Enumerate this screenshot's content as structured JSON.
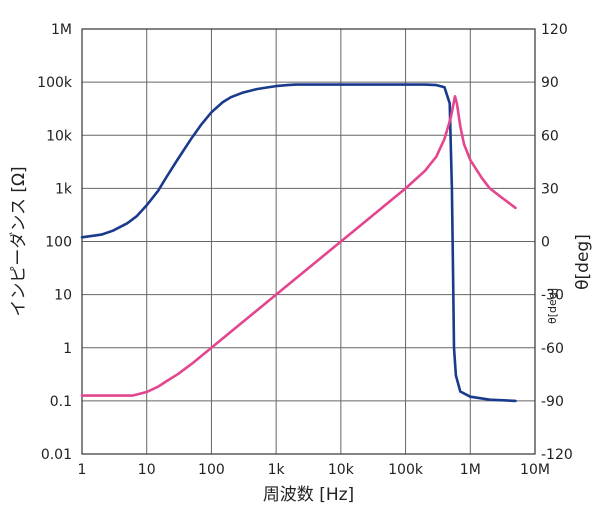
{
  "chart_data": {
    "type": "line",
    "xlabel": "周波数 [Hz]",
    "ylabel": "インピーダンス [Ω]",
    "y2label": "θ[deg]",
    "y2label_inner": "θ[deg]",
    "x_scale": "log",
    "y_scale": "log",
    "xlim": [
      1,
      10000000
    ],
    "ylim": [
      0.01,
      1000000
    ],
    "y2lim": [
      -120,
      120
    ],
    "grid": true,
    "x_ticks": [
      {
        "value": 1,
        "label": "1"
      },
      {
        "value": 10,
        "label": "10"
      },
      {
        "value": 100,
        "label": "100"
      },
      {
        "value": 1000,
        "label": "1k"
      },
      {
        "value": 10000,
        "label": "10k"
      },
      {
        "value": 100000,
        "label": "100k"
      },
      {
        "value": 1000000,
        "label": "1M"
      },
      {
        "value": 10000000,
        "label": "10M"
      }
    ],
    "y_ticks": [
      {
        "value": 0.01,
        "label": "0.01"
      },
      {
        "value": 0.1,
        "label": "0.1"
      },
      {
        "value": 1,
        "label": "1"
      },
      {
        "value": 10,
        "label": "10"
      },
      {
        "value": 100,
        "label": "100"
      },
      {
        "value": 1000,
        "label": "1k"
      },
      {
        "value": 10000,
        "label": "10k"
      },
      {
        "value": 100000,
        "label": "100k"
      },
      {
        "value": 1000000,
        "label": "1M"
      }
    ],
    "y2_ticks": [
      {
        "value": 120,
        "label": "120"
      },
      {
        "value": 90,
        "label": "90"
      },
      {
        "value": 60,
        "label": "60"
      },
      {
        "value": 30,
        "label": "30"
      },
      {
        "value": 0,
        "label": "0"
      },
      {
        "value": -30,
        "label": "-30"
      },
      {
        "value": -60,
        "label": "-60"
      },
      {
        "value": -90,
        "label": "-90"
      },
      {
        "value": -120,
        "label": "-120"
      }
    ],
    "series": [
      {
        "axis": "left",
        "color": "#1a3a8c",
        "points": [
          [
            1,
            120
          ],
          [
            2,
            135
          ],
          [
            3,
            160
          ],
          [
            5,
            220
          ],
          [
            7,
            300
          ],
          [
            10,
            480
          ],
          [
            15,
            900
          ],
          [
            20,
            1600
          ],
          [
            30,
            3500
          ],
          [
            50,
            9000
          ],
          [
            70,
            16000
          ],
          [
            100,
            27000
          ],
          [
            150,
            42000
          ],
          [
            200,
            52000
          ],
          [
            300,
            63000
          ],
          [
            500,
            74000
          ],
          [
            700,
            79000
          ],
          [
            1000,
            84000
          ],
          [
            1500,
            88000
          ],
          [
            2000,
            90000
          ],
          [
            5000,
            90000
          ],
          [
            10000,
            90000
          ],
          [
            50000,
            90000
          ],
          [
            100000,
            90000
          ],
          [
            200000,
            90000
          ],
          [
            300000,
            88000
          ],
          [
            400000,
            80000
          ],
          [
            480000,
            40000
          ],
          [
            520000,
            1000
          ],
          [
            540000,
            30
          ],
          [
            560000,
            1
          ],
          [
            600000,
            0.3
          ],
          [
            700000,
            0.15
          ],
          [
            1000000,
            0.12
          ],
          [
            2000000,
            0.105
          ],
          [
            5000000,
            0.1
          ]
        ]
      },
      {
        "axis": "right",
        "color": "#e4458f",
        "points": [
          [
            1,
            -87
          ],
          [
            3,
            -87
          ],
          [
            6,
            -87
          ],
          [
            10,
            -85
          ],
          [
            15,
            -82
          ],
          [
            20,
            -79
          ],
          [
            30,
            -75
          ],
          [
            50,
            -69
          ],
          [
            100,
            -60
          ],
          [
            1000,
            -30
          ],
          [
            10000,
            0
          ],
          [
            100000,
            30
          ],
          [
            200000,
            40
          ],
          [
            300000,
            48
          ],
          [
            400000,
            58
          ],
          [
            500000,
            70
          ],
          [
            580000,
            82
          ],
          [
            620000,
            78
          ],
          [
            700000,
            65
          ],
          [
            800000,
            55
          ],
          [
            1000000,
            46
          ],
          [
            1500000,
            36
          ],
          [
            2000000,
            30
          ],
          [
            3000000,
            25
          ],
          [
            5000000,
            19
          ]
        ]
      }
    ]
  }
}
